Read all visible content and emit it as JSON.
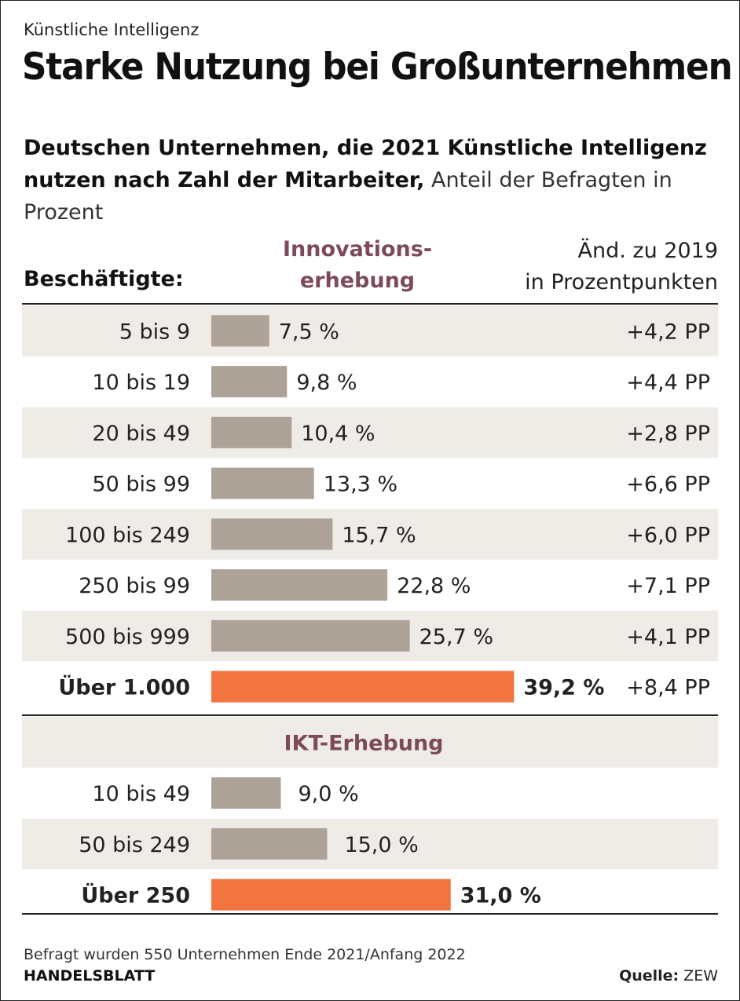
{
  "kicker": "Künstliche Intelligenz",
  "title": "Starke Nutzung bei Großunternehmen",
  "subtitle_bold": "Deutschen Unternehmen, die 2021 Künstliche Intelligenz nutzen nach Zahl der Mitarbeiter,",
  "subtitle_normal": " Anteil der Befragten in Prozent",
  "header": {
    "employees": "Beschäftigte:",
    "innovation_line1": "Innovations-",
    "innovation_line2": "erhebung",
    "change_line1": "Änd. zu 2019",
    "change_line2": "in Prozentpunkten"
  },
  "colors": {
    "bar_default": "#ada297",
    "bar_highlight": "#f2743e",
    "row_shade": "#efece7",
    "section_label": "#7d4a5a"
  },
  "chart_data": {
    "type": "bar",
    "orientation": "horizontal",
    "unit": "%",
    "groups": [
      {
        "name": "Innovationserhebung",
        "rows": [
          {
            "label": "5 bis 9",
            "value": 7.5,
            "value_label": "7,5 %",
            "change": "+4,2 PP",
            "highlight": false
          },
          {
            "label": "10 bis 19",
            "value": 9.8,
            "value_label": "9,8 %",
            "change": "+4,4 PP",
            "highlight": false
          },
          {
            "label": "20 bis 49",
            "value": 10.4,
            "value_label": "10,4 %",
            "change": "+2,8 PP",
            "highlight": false
          },
          {
            "label": "50 bis 99",
            "value": 13.3,
            "value_label": "13,3 %",
            "change": "+6,6 PP",
            "highlight": false
          },
          {
            "label": "100 bis 249",
            "value": 15.7,
            "value_label": "15,7 %",
            "change": "+6,0 PP",
            "highlight": false
          },
          {
            "label": "250 bis 99",
            "value": 22.8,
            "value_label": "22,8 %",
            "change": "+7,1 PP",
            "highlight": false
          },
          {
            "label": "500 bis 999",
            "value": 25.7,
            "value_label": "25,7 %",
            "change": "+4,1 PP",
            "highlight": false
          },
          {
            "label": "Über 1.000",
            "value": 39.2,
            "value_label": "39,2 %",
            "change": "+8,4 PP",
            "highlight": true
          }
        ]
      },
      {
        "name": "IKT-Erhebung",
        "label": "IKT-Erhebung",
        "rows": [
          {
            "label": "10 bis 49",
            "value": 9.0,
            "value_label": "9,0 %",
            "highlight": false
          },
          {
            "label": "50 bis 249",
            "value": 15.0,
            "value_label": "15,0 %",
            "highlight": false
          },
          {
            "label": "Über 250",
            "value": 31.0,
            "value_label": "31,0 %",
            "highlight": true
          }
        ]
      }
    ]
  },
  "footnote": "Befragt wurden 550 Unternehmen Ende 2021/Anfang 2022",
  "brand": "HANDELSBLATT",
  "source_label": "Quelle:",
  "source_value": " ZEW"
}
